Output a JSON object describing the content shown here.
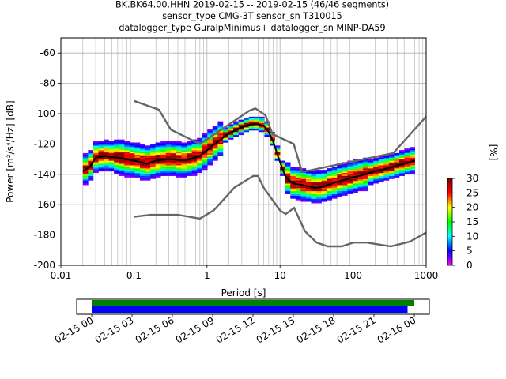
{
  "title_lines": [
    "BK.BK64.00.HHN   2019-02-15 -- 2019-02-15  (46/46 segments)",
    "sensor_type CMG-3T sensor_sn T310015",
    "datalogger_type GuralpMinimus+ datalogger_sn MINP-DA59"
  ],
  "colors": {
    "noise_model": "#666666",
    "mean_line": "#000000",
    "coverage_green": "#008000",
    "coverage_blue": "#0000ff",
    "colorbar": [
      "#ff00ff",
      "#0000ff",
      "#00ffff",
      "#00ff00",
      "#ffff00",
      "#ff0000",
      "#800000"
    ]
  },
  "chart_data": [
    {
      "type": "heatmap",
      "xlabel": "Period [s]",
      "ylabel": "Power [m²/s⁴/Hz] [dB]",
      "x_scale": "log",
      "xlim": [
        0.01,
        1000
      ],
      "ylim": [
        -200,
        -50
      ],
      "x_ticks": [
        "0.01",
        "0.1",
        "1",
        "10",
        "100",
        "1000"
      ],
      "y_ticks": [
        "-60",
        "-80",
        "-100",
        "-120",
        "-140",
        "-160",
        "-180",
        "-200"
      ],
      "grid": true,
      "colorbar": {
        "label": "[%]",
        "range": [
          0,
          30
        ],
        "ticks": [
          "0",
          "5",
          "10",
          "15",
          "20",
          "25",
          "30"
        ]
      },
      "series": [
        {
          "name": "",
          "role": "new high noise model",
          "x": [
            0.1,
            0.22,
            0.32,
            0.8,
            3.8,
            4.6,
            6.3,
            7.9,
            15.4,
            20,
            354.8,
            10000
          ],
          "y": [
            -91.5,
            -97.4,
            -110.5,
            -120,
            -98,
            -96.5,
            -101,
            -113.5,
            -120,
            -138.5,
            -126,
            -48.5
          ]
        },
        {
          "name": "",
          "role": "new low noise model",
          "x": [
            0.1,
            0.17,
            0.4,
            0.8,
            1.24,
            2.4,
            4.3,
            5,
            6,
            10,
            12,
            15.6,
            21.9,
            31.6,
            45,
            70,
            101,
            154,
            328,
            600,
            10000
          ],
          "y": [
            -168,
            -166.7,
            -166.7,
            -169.2,
            -163.7,
            -148.6,
            -141.1,
            -141.1,
            -149,
            -163.8,
            -166.2,
            -162.1,
            -177.5,
            -185,
            -187.5,
            -187.5,
            -185,
            -185,
            -187.5,
            -184.4,
            -151.5
          ]
        },
        {
          "name": "",
          "role": "mean PSD",
          "x": [
            0.02,
            0.025,
            0.03,
            0.04,
            0.06,
            0.1,
            0.15,
            0.2,
            0.3,
            0.5,
            0.8,
            1.2,
            2,
            3,
            4,
            5,
            6,
            7,
            8,
            10,
            12,
            15,
            20,
            25,
            30,
            40,
            60,
            100,
            150,
            200,
            300,
            500,
            700
          ],
          "y": [
            -138,
            -135,
            -129,
            -128,
            -129,
            -131,
            -133,
            -131,
            -130,
            -131,
            -128,
            -121,
            -113,
            -109,
            -107,
            -107,
            -108,
            -112,
            -118,
            -132,
            -142,
            -146,
            -147,
            -148,
            -149,
            -148,
            -145,
            -142,
            -140,
            -138,
            -136,
            -133,
            -131
          ]
        }
      ]
    },
    {
      "type": "bar",
      "role": "data coverage timeline",
      "x_ticks": [
        "02-15 00",
        "02-15 03",
        "02-15 06",
        "02-15 09",
        "02-15 12",
        "02-15 15",
        "02-15 18",
        "02-15 21",
        "02-16 00"
      ],
      "series": [
        {
          "name": "",
          "start": "02-15 00:00",
          "end": "02-16 00:00"
        },
        {
          "name": "",
          "start": "02-15 00:00",
          "end": "02-15 23:30"
        }
      ]
    }
  ]
}
